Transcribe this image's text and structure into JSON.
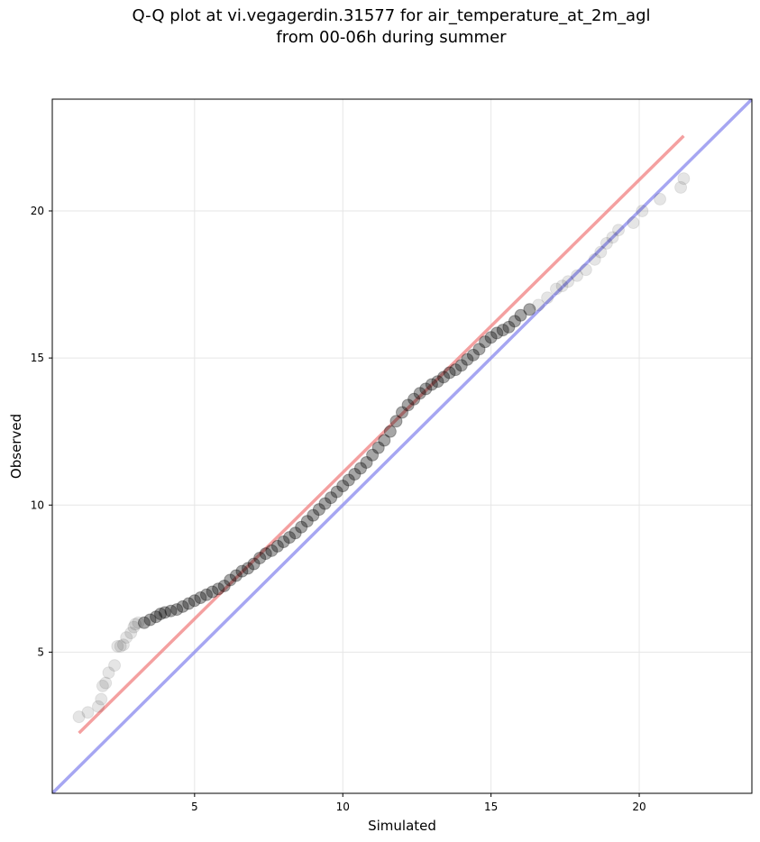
{
  "chart_data": {
    "type": "scatter",
    "title_lines": [
      "Q-Q plot at vi.vegagerdin.31577 for air_temperature_at_2m_agl",
      "from 00-06h during summer"
    ],
    "xlabel": "Simulated",
    "ylabel": "Observed",
    "xlim": [
      0.2,
      23.8
    ],
    "ylim": [
      0.2,
      23.8
    ],
    "xticks": [
      5,
      10,
      15,
      20
    ],
    "yticks": [
      5,
      10,
      15,
      20
    ],
    "grid": true,
    "colors": {
      "points": "#000000",
      "fit_line": "#f08080",
      "identity_line": "#8888ee",
      "grid": "#e6e6e6"
    },
    "fit_line": {
      "x": [
        1.1,
        21.5
      ],
      "y": [
        2.25,
        22.55
      ]
    },
    "identity_line": {
      "x": [
        0.2,
        23.8
      ],
      "y": [
        0.2,
        23.8
      ]
    },
    "series": [
      {
        "x": [
          1.1,
          1.4,
          1.75,
          1.85,
          1.9,
          2.0,
          2.1,
          2.3,
          2.4,
          2.5,
          2.6,
          2.7,
          2.85,
          2.95,
          3.0,
          3.1,
          3.3,
          3.5,
          3.7,
          3.85,
          4.0,
          4.2,
          4.4,
          4.6,
          4.8,
          5.0,
          5.2,
          5.4,
          5.6,
          5.8,
          6.0,
          6.2,
          6.4,
          6.6,
          6.8,
          7.0,
          7.2,
          7.4,
          7.6,
          7.8,
          8.0,
          8.2,
          8.4,
          8.6,
          8.8,
          9.0,
          9.2,
          9.4,
          9.6,
          9.8,
          10.0,
          10.2,
          10.4,
          10.6,
          10.8,
          11.0,
          11.2,
          11.4,
          11.6,
          11.8,
          12.0,
          12.2,
          12.4,
          12.6,
          12.8,
          13.0,
          13.2,
          13.4,
          13.6,
          13.8,
          14.0,
          14.2,
          14.4,
          14.6,
          14.8,
          15.0,
          15.2,
          15.4,
          15.6,
          15.8,
          16.0,
          16.3,
          16.6,
          16.9,
          17.2,
          17.4,
          17.6,
          17.9,
          18.2,
          18.5,
          18.7,
          18.9,
          19.1,
          19.3,
          19.8,
          20.1,
          20.7,
          21.4,
          21.5
        ],
        "y": [
          2.8,
          2.95,
          3.15,
          3.4,
          3.85,
          3.95,
          4.3,
          4.55,
          5.2,
          5.2,
          5.25,
          5.5,
          5.65,
          5.85,
          5.95,
          6.0,
          6.0,
          6.1,
          6.2,
          6.3,
          6.35,
          6.4,
          6.45,
          6.55,
          6.65,
          6.75,
          6.85,
          6.95,
          7.05,
          7.15,
          7.25,
          7.45,
          7.6,
          7.75,
          7.85,
          8.0,
          8.2,
          8.35,
          8.45,
          8.6,
          8.75,
          8.9,
          9.05,
          9.25,
          9.45,
          9.65,
          9.85,
          10.05,
          10.25,
          10.45,
          10.65,
          10.85,
          11.05,
          11.25,
          11.45,
          11.7,
          11.95,
          12.2,
          12.5,
          12.85,
          13.15,
          13.4,
          13.6,
          13.8,
          13.95,
          14.1,
          14.2,
          14.35,
          14.5,
          14.6,
          14.75,
          14.95,
          15.1,
          15.3,
          15.55,
          15.7,
          15.85,
          15.95,
          16.05,
          16.25,
          16.45,
          16.65,
          16.8,
          17.05,
          17.35,
          17.45,
          17.6,
          17.8,
          18.0,
          18.35,
          18.6,
          18.9,
          19.1,
          19.35,
          19.6,
          20.0,
          20.4,
          20.8,
          21.1
        ]
      }
    ]
  }
}
